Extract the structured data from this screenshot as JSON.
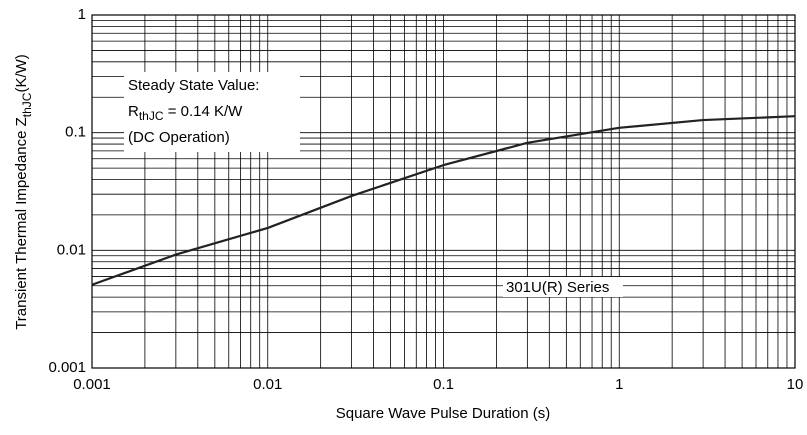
{
  "chart_data": {
    "type": "line",
    "log_x": true,
    "log_y": true,
    "grid": true,
    "x_label": "Square Wave Pulse Duration (s)",
    "y_label": {
      "main": "Transient Thermal Impedance Z",
      "sub": "thJC",
      "unit": "(K/W)"
    },
    "annotation": {
      "line1": "Steady State Value:",
      "r_main": "R",
      "r_sub": "thJC",
      "r_rest": " = 0.14 K/W",
      "line3": "(DC Operation)"
    },
    "series_label": "301U(R) Series",
    "x": [
      0.001,
      0.003,
      0.01,
      0.03,
      0.1,
      0.3,
      1,
      3,
      10
    ],
    "series": [
      {
        "name": "301U(R) Series",
        "color": "#222222",
        "values": [
          0.0051,
          0.0092,
          0.0155,
          0.029,
          0.053,
          0.082,
          0.11,
          0.128,
          0.138
        ]
      }
    ],
    "xlim": [
      0.001,
      10
    ],
    "xticks": [
      0.001,
      0.01,
      0.1,
      1,
      10
    ],
    "ylim": [
      0.001,
      1
    ],
    "yticks": [
      0.001,
      0.01,
      0.1,
      1
    ]
  }
}
